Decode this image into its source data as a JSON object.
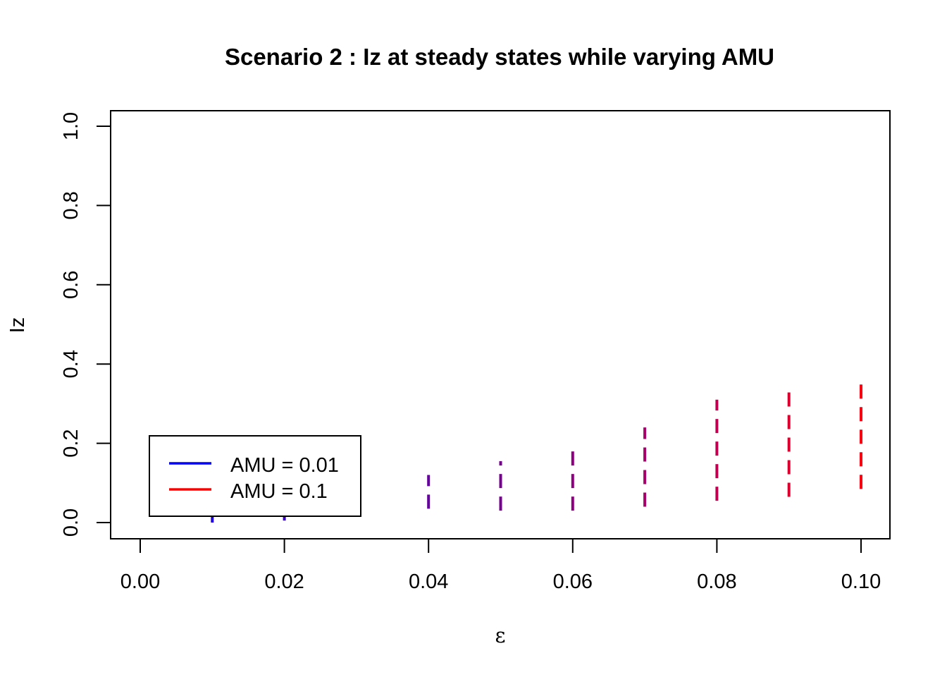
{
  "chart_data": {
    "type": "line",
    "title": "Scenario 2 : Iz at steady states while varying AMU",
    "xlabel": "ε",
    "ylabel": "Iz",
    "xlim": [
      0.0,
      0.1
    ],
    "ylim": [
      0.0,
      1.0
    ],
    "x_ticks": [
      "0.00",
      "0.02",
      "0.04",
      "0.06",
      "0.08",
      "0.10"
    ],
    "y_ticks": [
      "0.0",
      "0.2",
      "0.4",
      "0.6",
      "0.8",
      "1.0"
    ],
    "grid": false,
    "legend_position": "bottom-left",
    "legend": [
      {
        "label": "AMU = 0.01",
        "color": "#0000ff"
      },
      {
        "label": "AMU = 0.1",
        "color": "#ff0000"
      }
    ],
    "line_style": "dashed vertical segments, color gradient blue to red",
    "series": [
      {
        "x": 0.01,
        "y_min": 0.0,
        "y_max": 0.02,
        "color": "#1f00e0"
      },
      {
        "x": 0.02,
        "y_min": 0.005,
        "y_max": 0.03,
        "color": "#3a00c8"
      },
      {
        "x": 0.03,
        "y_min": 0.015,
        "y_max": 0.04,
        "color": "#5000b0"
      },
      {
        "x": 0.04,
        "y_min": 0.035,
        "y_max": 0.12,
        "color": "#6500a0"
      },
      {
        "x": 0.05,
        "y_min": 0.03,
        "y_max": 0.155,
        "color": "#780090"
      },
      {
        "x": 0.06,
        "y_min": 0.03,
        "y_max": 0.19,
        "color": "#8e0080"
      },
      {
        "x": 0.07,
        "y_min": 0.04,
        "y_max": 0.24,
        "color": "#a8006a"
      },
      {
        "x": 0.08,
        "y_min": 0.055,
        "y_max": 0.31,
        "color": "#c0004f"
      },
      {
        "x": 0.09,
        "y_min": 0.065,
        "y_max": 0.34,
        "color": "#dc002e"
      },
      {
        "x": 0.1,
        "y_min": 0.085,
        "y_max": 0.35,
        "color": "#f70012"
      }
    ]
  }
}
